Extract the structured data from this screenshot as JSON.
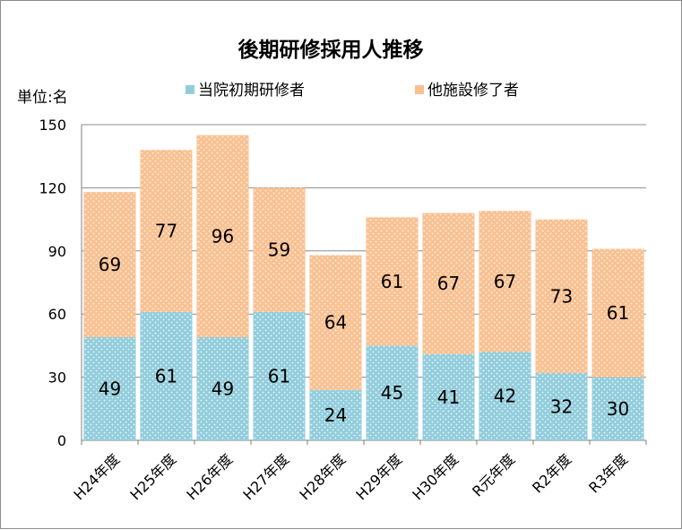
{
  "chart_data": {
    "type": "bar",
    "stacked": true,
    "title": "後期研修採用人推移",
    "ylabel": "単位:名",
    "xlabel": "",
    "categories": [
      "H24年度",
      "H25年度",
      "H26年度",
      "H27年度",
      "H28年度",
      "H29年度",
      "H30年度",
      "R元年度",
      "R2年度",
      "R3年度"
    ],
    "series": [
      {
        "name": "当院初期研修者",
        "color": "#92cddc",
        "values": [
          49,
          61,
          49,
          61,
          24,
          45,
          41,
          42,
          32,
          30
        ]
      },
      {
        "name": "他施設修了者",
        "color": "#fac090",
        "values": [
          69,
          77,
          96,
          59,
          64,
          61,
          67,
          67,
          73,
          61
        ]
      }
    ],
    "ylim": [
      0,
      150
    ],
    "yticks": [
      0,
      30,
      60,
      90,
      120,
      150
    ],
    "grid": true,
    "legend": "top"
  }
}
